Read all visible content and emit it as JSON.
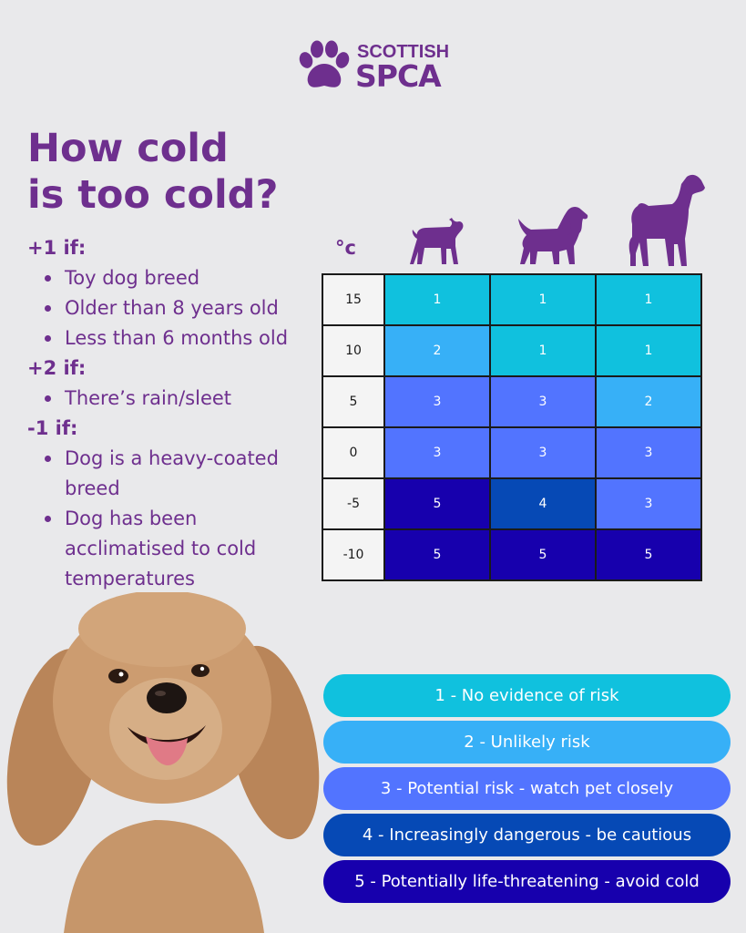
{
  "logo": {
    "line1": "SCOTTISH",
    "line2": "SPCA",
    "icon": "paw-print-icon"
  },
  "title": {
    "line1": "How cold",
    "line2": "is too cold?"
  },
  "rules": [
    {
      "heading": "+1 if:",
      "items": [
        "Toy dog breed",
        "Older than 8 years old",
        "Less than 6 months old"
      ]
    },
    {
      "heading": "+2 if:",
      "items": [
        "There’s rain/sleet"
      ]
    },
    {
      "heading": "-1 if:",
      "items": [
        "Dog is a heavy-coated breed",
        "Dog has been acclimatised to cold temperatures"
      ]
    }
  ],
  "table": {
    "unit": "°c",
    "columns": [
      "small-dog-icon",
      "medium-dog-icon",
      "large-dog-icon"
    ],
    "rows": [
      {
        "temp": "15",
        "values": [
          "1",
          "1",
          "1"
        ]
      },
      {
        "temp": "10",
        "values": [
          "2",
          "1",
          "1"
        ]
      },
      {
        "temp": "5",
        "values": [
          "3",
          "3",
          "2"
        ]
      },
      {
        "temp": "0",
        "values": [
          "3",
          "3",
          "3"
        ]
      },
      {
        "temp": "-5",
        "values": [
          "5",
          "4",
          "3"
        ]
      },
      {
        "temp": "-10",
        "values": [
          "5",
          "5",
          "5"
        ]
      }
    ]
  },
  "risk_colors": {
    "1": "#10c1de",
    "2": "#37b0f7",
    "3": "#5274ff",
    "4": "#0649b5",
    "5": "#1700ad"
  },
  "brand_color": "#6e2f8e",
  "legend": [
    {
      "level": "1",
      "label": "1 - No evidence of risk"
    },
    {
      "level": "2",
      "label": "2 - Unlikely risk"
    },
    {
      "level": "3",
      "label": "3 - Potential risk - watch pet closely"
    },
    {
      "level": "4",
      "label": "4 - Increasingly dangerous - be cautious"
    },
    {
      "level": "5",
      "label": "5 - Potentially life-threatening - avoid cold"
    }
  ]
}
